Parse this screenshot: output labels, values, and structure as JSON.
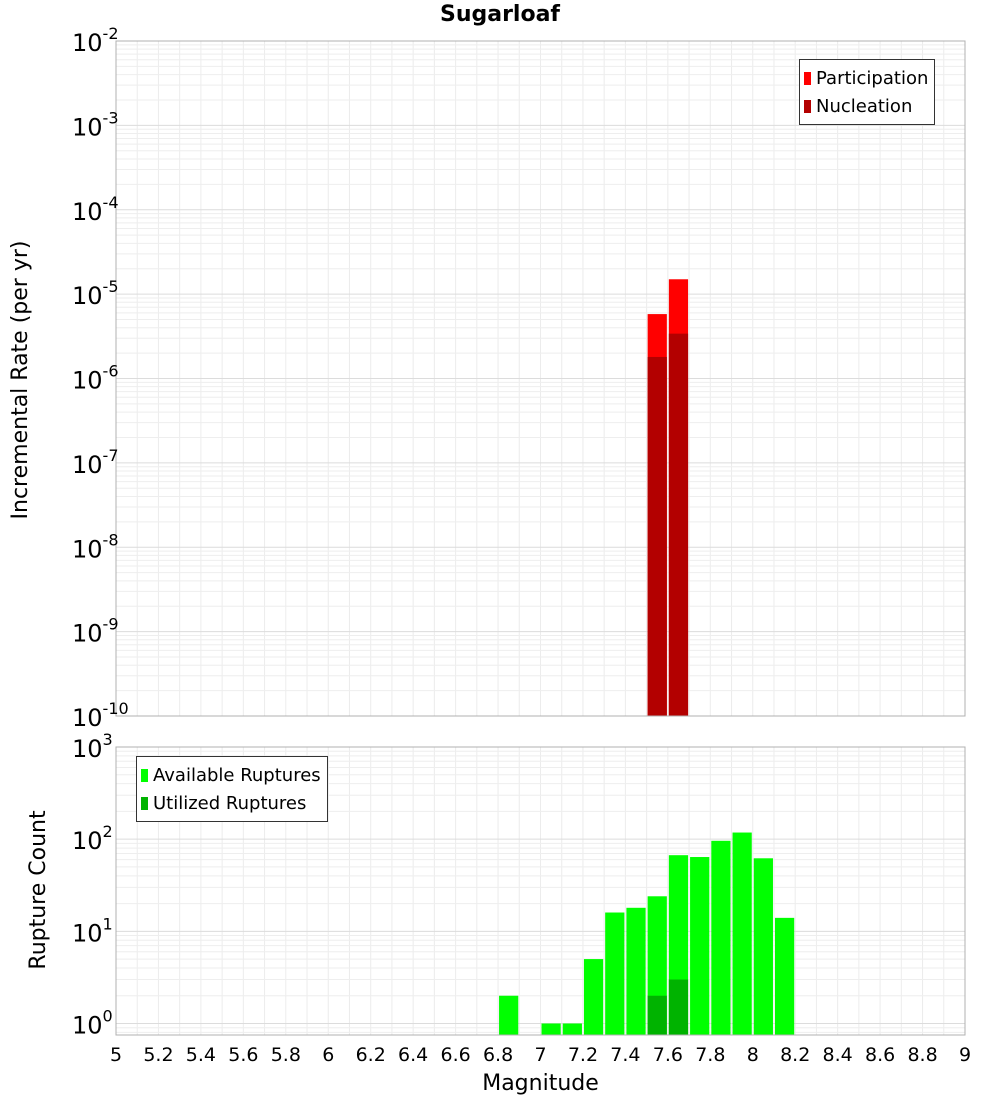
{
  "title": "Sugarloaf",
  "colors": {
    "participation": "#ff0000",
    "nucleation": "#b30000",
    "available": "#00ff00",
    "utilized": "#00b300"
  },
  "chart_data": [
    {
      "type": "bar",
      "scale": "log",
      "ylabel": "Incremental Rate (per yr)",
      "ylim": [
        1e-10,
        0.01
      ],
      "y_tick_labels": [
        {
          "base": "10",
          "exp": "-2"
        },
        {
          "base": "10",
          "exp": "-3"
        },
        {
          "base": "10",
          "exp": "-4"
        },
        {
          "base": "10",
          "exp": "-5"
        },
        {
          "base": "10",
          "exp": "-6"
        },
        {
          "base": "10",
          "exp": "-7"
        },
        {
          "base": "10",
          "exp": "-8"
        },
        {
          "base": "10",
          "exp": "-9"
        },
        {
          "base": "10",
          "exp": "-10"
        }
      ],
      "legend": {
        "position": "top-right",
        "entries": [
          "Participation",
          "Nucleation"
        ]
      },
      "series": [
        {
          "name": "Participation",
          "x": [
            7.55,
            7.65
          ],
          "values": [
            5.8e-06,
            1.5e-05
          ]
        },
        {
          "name": "Nucleation",
          "x": [
            7.55,
            7.65
          ],
          "values": [
            1.8e-06,
            3.4e-06
          ]
        }
      ]
    },
    {
      "type": "bar",
      "scale": "log",
      "ylabel": "Rupture Count",
      "ylim": [
        0.75,
        1000
      ],
      "y_tick_labels": [
        {
          "base": "10",
          "exp": "3"
        },
        {
          "base": "10",
          "exp": "2"
        },
        {
          "base": "10",
          "exp": "1"
        },
        {
          "base": "10",
          "exp": "0"
        }
      ],
      "xlabel": "Magnitude",
      "xlim": [
        5,
        9
      ],
      "x_tick_labels": [
        "5",
        "5.2",
        "5.4",
        "5.6",
        "5.8",
        "6",
        "6.2",
        "6.4",
        "6.6",
        "6.8",
        "7",
        "7.2",
        "7.4",
        "7.6",
        "7.8",
        "8",
        "8.2",
        "8.4",
        "8.6",
        "8.8",
        "9"
      ],
      "legend": {
        "position": "top-left",
        "entries": [
          "Available Ruptures",
          "Utilized Ruptures"
        ]
      },
      "series": [
        {
          "name": "Available Ruptures",
          "x": [
            6.85,
            7.05,
            7.15,
            7.25,
            7.35,
            7.45,
            7.55,
            7.65,
            7.75,
            7.85,
            7.95,
            8.05,
            8.15
          ],
          "values": [
            2,
            1,
            1,
            5,
            16,
            18,
            24,
            67,
            64,
            96,
            118,
            62,
            14
          ]
        },
        {
          "name": "Utilized Ruptures",
          "x": [
            7.55,
            7.65
          ],
          "values": [
            2,
            3
          ]
        }
      ]
    }
  ]
}
